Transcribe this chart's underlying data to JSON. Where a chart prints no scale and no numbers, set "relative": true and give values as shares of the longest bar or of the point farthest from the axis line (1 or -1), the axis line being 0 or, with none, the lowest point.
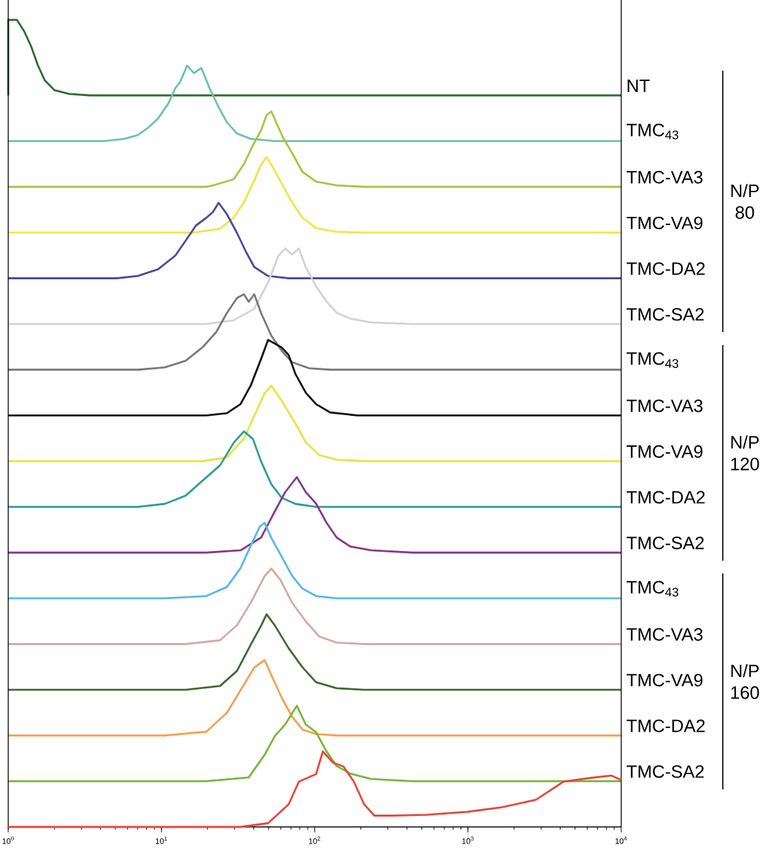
{
  "chart_data": [
    {
      "type": "line",
      "relative": true,
      "log": "x",
      "xlim": [
        1,
        10000
      ],
      "tick_labels": false,
      "annotations": [
        "N/P 80"
      ],
      "series": [
        {
          "name": "NT",
          "color": "#2e6b30",
          "x": [
            1,
            1,
            1.14,
            1.27,
            1.41,
            1.56,
            1.73,
            2.0,
            2.5,
            3.4,
            10000
          ],
          "values": [
            0,
            1,
            1,
            0.85,
            0.65,
            0.4,
            0.2,
            0.07,
            0.02,
            0,
            0
          ]
        }
      ]
    },
    {
      "type": "line",
      "relative": true,
      "log": "x",
      "xlim": [
        1,
        10000
      ],
      "tick_labels": false,
      "series": [
        {
          "name": "TMC$_{43}$",
          "color": "#6cc3a8",
          "x": [
            1,
            4.2,
            5.7,
            7.0,
            8.1,
            9.5,
            11.1,
            12.3,
            13.2,
            14.7,
            16.3,
            18.2,
            20.6,
            23.6,
            26.7,
            31.1,
            38.3,
            55,
            10000
          ],
          "values": [
            0,
            0,
            0.03,
            0.08,
            0.17,
            0.3,
            0.5,
            0.7,
            0.78,
            1,
            0.9,
            0.97,
            0.7,
            0.45,
            0.25,
            0.1,
            0.03,
            0,
            0
          ]
        }
      ]
    },
    {
      "type": "line",
      "relative": true,
      "log": "x",
      "xlim": [
        1,
        10000
      ],
      "tick_labels": false,
      "series": [
        {
          "name": "TMC-VA3",
          "color": "#a5c63f",
          "x": [
            1,
            19.6,
            21.7,
            29.6,
            34.5,
            39.5,
            44.7,
            48.5,
            52.1,
            56.1,
            62.2,
            71.1,
            83,
            102,
            139,
            210,
            10000
          ],
          "values": [
            0,
            0,
            0.02,
            0.1,
            0.3,
            0.55,
            0.75,
            0.95,
            1,
            0.85,
            0.65,
            0.45,
            0.2,
            0.07,
            0.02,
            0,
            0
          ]
        }
      ]
    },
    {
      "type": "line",
      "relative": true,
      "log": "x",
      "xlim": [
        1,
        10000
      ],
      "tick_labels": false,
      "series": [
        {
          "name": "TMC-VA9",
          "color": "#f2e544",
          "x": [
            1,
            16.3,
            24.1,
            29.6,
            34.5,
            39.5,
            44.7,
            48.5,
            53.8,
            60.9,
            71.1,
            83,
            102,
            139,
            210,
            10000
          ],
          "values": [
            0,
            0,
            0.05,
            0.2,
            0.4,
            0.65,
            0.9,
            1,
            0.85,
            0.65,
            0.4,
            0.2,
            0.06,
            0.01,
            0,
            0
          ]
        }
      ]
    },
    {
      "type": "line",
      "relative": true,
      "log": "x",
      "xlim": [
        1,
        10000
      ],
      "tick_labels": false,
      "series": [
        {
          "name": "TMC-DA2",
          "color": "#4b4a9b",
          "x": [
            1,
            5.1,
            7.0,
            9.5,
            12.3,
            14.4,
            16.8,
            19.6,
            21.7,
            23.6,
            26.7,
            31.1,
            35.6,
            40.3,
            49.6,
            67.6,
            10000
          ],
          "values": [
            0,
            0,
            0.03,
            0.12,
            0.3,
            0.5,
            0.7,
            0.8,
            0.88,
            1,
            0.85,
            0.6,
            0.35,
            0.15,
            0.03,
            0,
            0
          ]
        }
      ]
    },
    {
      "type": "line",
      "relative": true,
      "log": "x",
      "xlim": [
        1,
        10000
      ],
      "tick_labels": false,
      "series": [
        {
          "name": "TMC-SA2",
          "color": "#d3d1d1",
          "x": [
            1,
            19.6,
            29.6,
            40.3,
            49.6,
            57.8,
            64.1,
            71.1,
            78.8,
            87.5,
            102,
            119,
            139,
            171,
            233,
            433,
            10000
          ],
          "values": [
            0,
            0,
            0.05,
            0.2,
            0.55,
            0.9,
            1,
            0.92,
            1,
            0.75,
            0.5,
            0.3,
            0.15,
            0.07,
            0.02,
            0,
            0
          ]
        }
      ]
    },
    {
      "type": "line",
      "relative": true,
      "log": "x",
      "xlim": [
        1,
        10000
      ],
      "tick_labels": false,
      "annotations": [
        "N/P 120"
      ],
      "series": [
        {
          "name": "TMC$_{43}$",
          "color": "#7b7878",
          "x": [
            1,
            7.0,
            10.5,
            14.4,
            18.6,
            22.8,
            26.7,
            31.1,
            34.5,
            37.1,
            40.3,
            44.7,
            52.1,
            60.9,
            71.1,
            92,
            126,
            10000
          ],
          "values": [
            0,
            0,
            0.03,
            0.12,
            0.3,
            0.5,
            0.75,
            0.95,
            1,
            0.9,
            1,
            0.75,
            0.45,
            0.25,
            0.1,
            0.02,
            0,
            0
          ]
        }
      ]
    },
    {
      "type": "line",
      "relative": true,
      "log": "x",
      "xlim": [
        1,
        10000
      ],
      "tick_labels": false,
      "series": [
        {
          "name": "TMC-VA3",
          "color": "#111111",
          "x": [
            1,
            19.6,
            26.7,
            32.8,
            38.3,
            44.7,
            49.6,
            55,
            60.9,
            67.6,
            74.8,
            87.5,
            102,
            126,
            190,
            10000
          ],
          "values": [
            0,
            0,
            0.03,
            0.15,
            0.4,
            0.75,
            1,
            0.95,
            0.9,
            0.8,
            0.55,
            0.3,
            0.15,
            0.04,
            0,
            0
          ]
        }
      ]
    },
    {
      "type": "line",
      "relative": true,
      "log": "x",
      "xlim": [
        1,
        10000
      ],
      "tick_labels": false,
      "series": [
        {
          "name": "TMC-VA9",
          "color": "#ece23a",
          "x": [
            1,
            18.6,
            26.7,
            34.5,
            40.3,
            47.1,
            52.1,
            60.9,
            74.8,
            87.5,
            107,
            139,
            210,
            10000
          ],
          "values": [
            0,
            0,
            0.05,
            0.3,
            0.6,
            0.9,
            1,
            0.8,
            0.5,
            0.25,
            0.08,
            0.02,
            0,
            0
          ]
        }
      ]
    },
    {
      "type": "line",
      "relative": true,
      "log": "x",
      "xlim": [
        1,
        10000
      ],
      "tick_labels": false,
      "series": [
        {
          "name": "TMC-DA2",
          "color": "#2a9e9c",
          "x": [
            1,
            7.0,
            10.5,
            14.4,
            18.6,
            24.1,
            29.6,
            34.5,
            39.5,
            44.7,
            52.1,
            60.9,
            74.8,
            102,
            10000
          ],
          "values": [
            0,
            0,
            0.04,
            0.15,
            0.35,
            0.55,
            0.85,
            1,
            0.9,
            0.6,
            0.3,
            0.12,
            0.04,
            0,
            0
          ]
        }
      ]
    },
    {
      "type": "line",
      "relative": true,
      "log": "x",
      "xlim": [
        1,
        10000
      ],
      "tick_labels": false,
      "series": [
        {
          "name": "TMC-SA2",
          "color": "#87388f",
          "x": [
            1,
            19.6,
            32.8,
            44.7,
            55,
            64.1,
            76.4,
            87.5,
            102,
            119,
            139,
            171,
            233,
            433,
            10000
          ],
          "values": [
            0,
            0,
            0.03,
            0.2,
            0.55,
            0.8,
            1,
            0.8,
            0.65,
            0.4,
            0.2,
            0.08,
            0.03,
            0,
            0
          ]
        }
      ]
    },
    {
      "type": "line",
      "relative": true,
      "log": "x",
      "xlim": [
        1,
        10000
      ],
      "tick_labels": false,
      "annotations": [
        "N/P 160"
      ],
      "series": [
        {
          "name": "TMC$_{43}$",
          "color": "#55b9e6",
          "x": [
            1,
            10.5,
            19.6,
            26.7,
            32.8,
            38.3,
            43.8,
            47.1,
            52.1,
            60.9,
            71.1,
            83,
            102,
            139,
            10000
          ],
          "values": [
            0,
            0,
            0.03,
            0.15,
            0.4,
            0.7,
            0.95,
            1,
            0.8,
            0.55,
            0.3,
            0.13,
            0.03,
            0,
            0
          ]
        }
      ]
    },
    {
      "type": "line",
      "relative": true,
      "log": "x",
      "xlim": [
        1,
        10000
      ],
      "tick_labels": false,
      "series": [
        {
          "name": "TMC-VA3",
          "color": "#d5aaa2",
          "x": [
            1,
            14.4,
            24.1,
            31.1,
            38.3,
            47.1,
            52.1,
            59.7,
            71.1,
            87.5,
            107,
            139,
            210,
            10000
          ],
          "values": [
            0,
            0,
            0.05,
            0.25,
            0.55,
            0.9,
            1,
            0.85,
            0.55,
            0.3,
            0.1,
            0.02,
            0,
            0
          ]
        }
      ]
    },
    {
      "type": "line",
      "relative": true,
      "log": "x",
      "xlim": [
        1,
        10000
      ],
      "tick_labels": false,
      "series": [
        {
          "name": "TMC-VA9",
          "color": "#3d6b2c",
          "x": [
            1,
            14.4,
            24.1,
            31.1,
            38.3,
            44.7,
            48.5,
            55,
            67.6,
            83,
            102,
            139,
            210,
            10000
          ],
          "values": [
            0,
            0,
            0.05,
            0.25,
            0.6,
            0.85,
            1,
            0.85,
            0.55,
            0.3,
            0.1,
            0.02,
            0,
            0
          ]
        }
      ]
    },
    {
      "type": "line",
      "relative": true,
      "log": "x",
      "xlim": [
        1,
        10000
      ],
      "tick_labels": false,
      "series": [
        {
          "name": "TMC-DA2",
          "color": "#f7a04f",
          "x": [
            1,
            10.5,
            19.6,
            26.7,
            32.8,
            40.3,
            47.1,
            52.1,
            60.9,
            71.1,
            83,
            102,
            139,
            10000
          ],
          "values": [
            0,
            0,
            0.05,
            0.3,
            0.6,
            0.9,
            1,
            0.8,
            0.5,
            0.25,
            0.08,
            0.02,
            0,
            0
          ]
        }
      ]
    },
    {
      "type": "line",
      "relative": true,
      "log": "x",
      "xlim": [
        1,
        10000
      ],
      "tick_labels": false,
      "series": [
        {
          "name": "TMC-SA2",
          "color": "#74b837",
          "x": [
            1,
            19.6,
            37.1,
            47.1,
            55,
            64.1,
            76.4,
            87.5,
            102,
            119,
            139,
            171,
            233,
            433,
            10000
          ],
          "values": [
            0,
            0,
            0.05,
            0.35,
            0.6,
            0.75,
            1,
            0.75,
            0.65,
            0.4,
            0.2,
            0.1,
            0.03,
            0,
            0
          ]
        }
      ]
    },
    {
      "type": "line",
      "relative": true,
      "log": "x",
      "xlim": [
        1,
        10000
      ],
      "tick_labels": "x",
      "xticks": [
        {
          "value": 1,
          "label": "10$^{0}$"
        },
        {
          "value": 10,
          "label": "10$^{1}$"
        },
        {
          "value": 100,
          "label": "10$^{2}$"
        },
        {
          "value": 1000,
          "label": "10$^{3}$"
        },
        {
          "value": 10000,
          "label": "10$^{4}$"
        }
      ],
      "series": [
        {
          "color": "#e8473b",
          "x": [
            1,
            32.8,
            49.6,
            67.6,
            78.8,
            102,
            113,
            132,
            154,
            180,
            210,
            245,
            318,
            532,
            991,
            1660,
            2780,
            4200,
            6350,
            8650,
            10000
          ],
          "values": [
            0,
            0,
            0.05,
            0.3,
            0.6,
            0.7,
            1,
            0.85,
            0.8,
            0.6,
            0.3,
            0.15,
            0.15,
            0.16,
            0.2,
            0.26,
            0.36,
            0.6,
            0.65,
            0.68,
            0.62
          ]
        }
      ]
    }
  ]
}
